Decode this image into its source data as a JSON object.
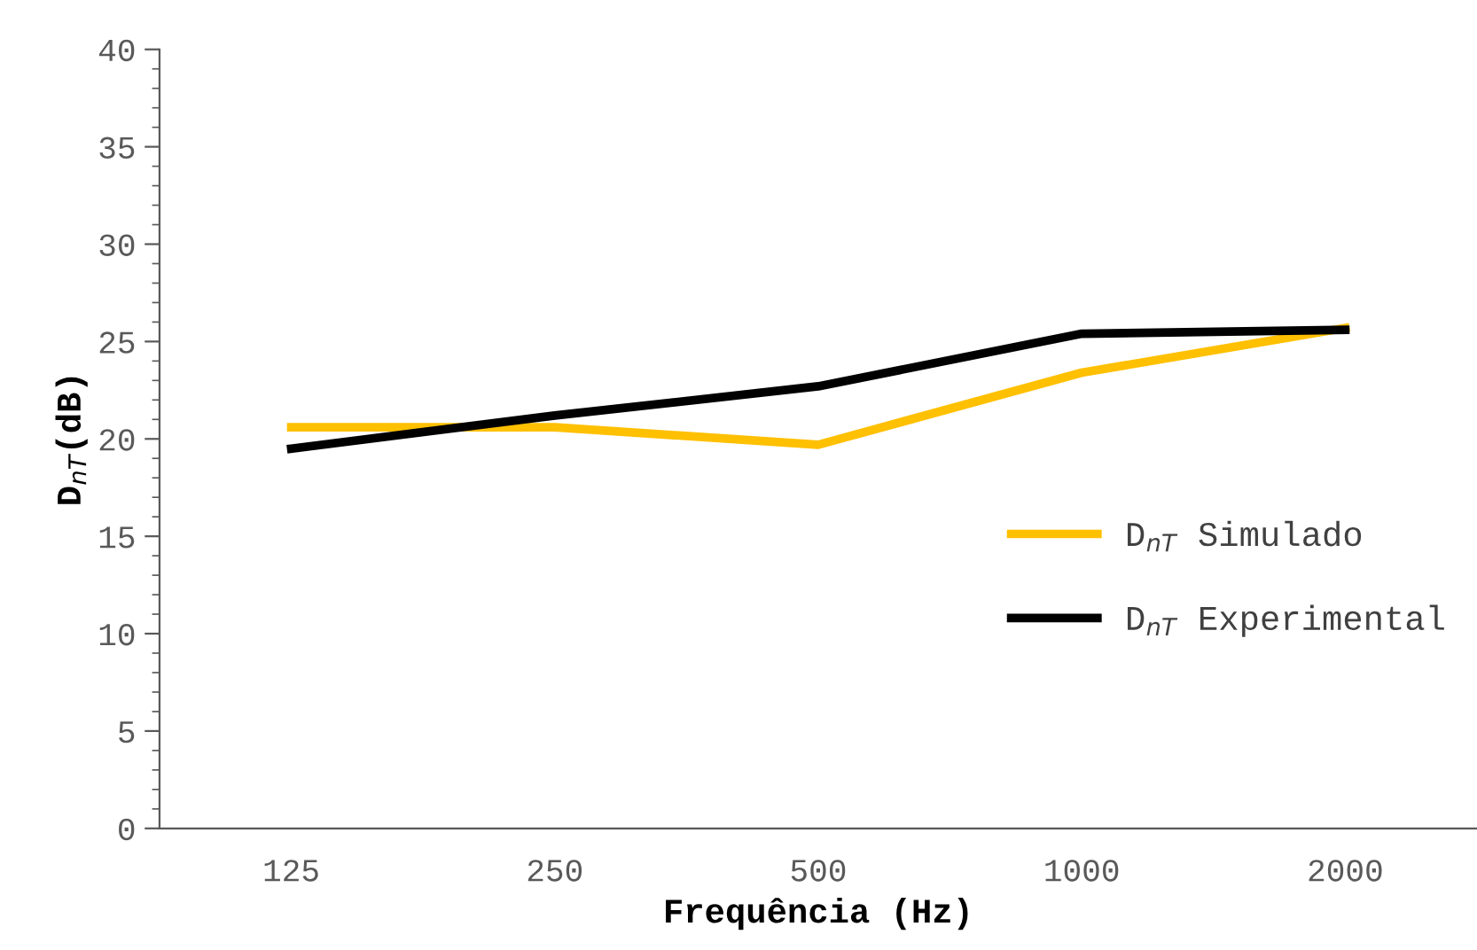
{
  "chart_data": {
    "type": "line",
    "xlabel": "Frequência (Hz)",
    "ylabel": "D$_{nT}$(dB)",
    "categories": [
      "125",
      "250",
      "500",
      "1000",
      "2000"
    ],
    "series": [
      {
        "name": "D$_{nT}$ Simulado",
        "color": "#ffc000",
        "values": [
          20.6,
          20.6,
          19.7,
          23.4,
          25.7
        ]
      },
      {
        "name": "D$_{nT}$ Experimental",
        "color": "#000000",
        "values": [
          19.5,
          21.2,
          22.7,
          25.4,
          25.6
        ]
      }
    ],
    "ylim": [
      0,
      40
    ],
    "yticks": [
      0,
      5,
      10,
      15,
      20,
      25,
      30,
      35,
      40
    ],
    "grid": false,
    "legend": "right",
    "marker": "none",
    "line_style": "solid"
  }
}
